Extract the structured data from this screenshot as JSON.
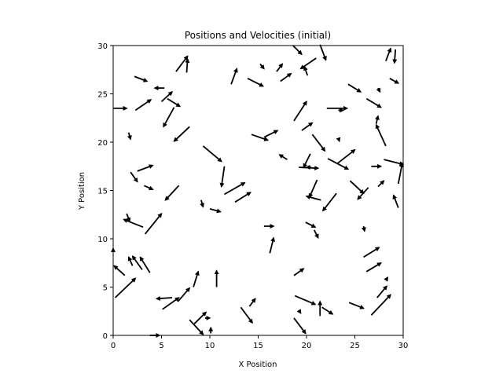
{
  "chart_data": {
    "type": "quiver",
    "title": "Positions and Velocities (initial)",
    "xlabel": "X Position",
    "ylabel": "Y Position",
    "xlim": [
      0,
      30
    ],
    "ylim": [
      0,
      30
    ],
    "xticks": [
      0,
      5,
      10,
      15,
      20,
      25,
      30
    ],
    "yticks": [
      0,
      5,
      10,
      15,
      20,
      25,
      30
    ],
    "grid": false,
    "arrow_color": "#000000",
    "arrows": [
      {
        "x": 0.0,
        "y": 23.5,
        "u": 1.4,
        "v": 0.0
      },
      {
        "x": 2.2,
        "y": 26.8,
        "u": 1.3,
        "v": -0.5
      },
      {
        "x": 2.3,
        "y": 23.3,
        "u": 1.6,
        "v": 1.1
      },
      {
        "x": 5.3,
        "y": 25.6,
        "u": -1.0,
        "v": 0.0
      },
      {
        "x": 5.0,
        "y": 24.2,
        "u": 1.1,
        "v": 1.0
      },
      {
        "x": 5.6,
        "y": 24.5,
        "u": 1.3,
        "v": -0.8
      },
      {
        "x": 6.3,
        "y": 23.6,
        "u": -1.1,
        "v": -2.0
      },
      {
        "x": 6.5,
        "y": 27.3,
        "u": 1.2,
        "v": 1.6
      },
      {
        "x": 7.6,
        "y": 27.2,
        "u": 0.1,
        "v": 1.4
      },
      {
        "x": 7.9,
        "y": 21.6,
        "u": -1.6,
        "v": -1.5
      },
      {
        "x": 1.6,
        "y": 21.0,
        "u": 0.2,
        "v": -0.7
      },
      {
        "x": 2.5,
        "y": 17.0,
        "u": 1.6,
        "v": 0.6
      },
      {
        "x": 1.8,
        "y": 16.9,
        "u": 0.7,
        "v": -1.0
      },
      {
        "x": 3.2,
        "y": 15.5,
        "u": 0.9,
        "v": -0.4
      },
      {
        "x": 6.8,
        "y": 15.5,
        "u": -1.4,
        "v": -1.5
      },
      {
        "x": 9.1,
        "y": 14.0,
        "u": 0.2,
        "v": -0.7
      },
      {
        "x": 10.0,
        "y": 13.1,
        "u": 1.1,
        "v": -0.3
      },
      {
        "x": 11.5,
        "y": 17.5,
        "u": -0.3,
        "v": -2.1
      },
      {
        "x": 9.3,
        "y": 19.6,
        "u": 1.9,
        "v": -1.6
      },
      {
        "x": 12.2,
        "y": 26.0,
        "u": 0.6,
        "v": 1.6
      },
      {
        "x": 13.9,
        "y": 26.6,
        "u": 1.6,
        "v": -0.8
      },
      {
        "x": 15.2,
        "y": 28.1,
        "u": 0.4,
        "v": -0.5
      },
      {
        "x": 16.9,
        "y": 27.3,
        "u": 0.6,
        "v": 0.8
      },
      {
        "x": 17.3,
        "y": 26.3,
        "u": 1.1,
        "v": 0.8
      },
      {
        "x": 18.6,
        "y": 30.0,
        "u": 0.9,
        "v": -0.9
      },
      {
        "x": 21.0,
        "y": 28.7,
        "u": -1.6,
        "v": -1.1
      },
      {
        "x": 20.1,
        "y": 26.9,
        "u": -0.3,
        "v": 0.9
      },
      {
        "x": 21.4,
        "y": 30.1,
        "u": 0.6,
        "v": -1.6
      },
      {
        "x": 24.3,
        "y": 26.0,
        "u": 1.3,
        "v": -0.8
      },
      {
        "x": 27.4,
        "y": 25.6,
        "u": 0.2,
        "v": -0.4
      },
      {
        "x": 28.2,
        "y": 28.4,
        "u": 0.5,
        "v": 1.3
      },
      {
        "x": 29.2,
        "y": 29.6,
        "u": -0.1,
        "v": -1.4
      },
      {
        "x": 28.6,
        "y": 26.6,
        "u": 0.9,
        "v": -0.5
      },
      {
        "x": 26.2,
        "y": 24.5,
        "u": 1.5,
        "v": -0.9
      },
      {
        "x": 22.1,
        "y": 23.5,
        "u": 2.1,
        "v": 0.0
      },
      {
        "x": 23.3,
        "y": 23.3,
        "u": 0.5,
        "v": 0.0
      },
      {
        "x": 18.7,
        "y": 22.2,
        "u": 1.3,
        "v": 2.0
      },
      {
        "x": 19.5,
        "y": 21.2,
        "u": 1.1,
        "v": 0.8
      },
      {
        "x": 18.0,
        "y": 18.2,
        "u": -0.8,
        "v": 0.5
      },
      {
        "x": 14.3,
        "y": 20.8,
        "u": 1.7,
        "v": -0.6
      },
      {
        "x": 15.6,
        "y": 20.5,
        "u": 1.4,
        "v": 0.7
      },
      {
        "x": 20.6,
        "y": 20.8,
        "u": 1.3,
        "v": -1.7
      },
      {
        "x": 23.3,
        "y": 20.4,
        "u": 0.1,
        "v": -0.3
      },
      {
        "x": 27.2,
        "y": 21.9,
        "u": 0.2,
        "v": 0.8
      },
      {
        "x": 28.2,
        "y": 19.6,
        "u": -1.0,
        "v": 2.2
      },
      {
        "x": 23.2,
        "y": 17.8,
        "u": 1.8,
        "v": 1.4
      },
      {
        "x": 22.2,
        "y": 18.3,
        "u": 2.1,
        "v": -1.1
      },
      {
        "x": 26.7,
        "y": 17.5,
        "u": 1.0,
        "v": 0.0
      },
      {
        "x": 28.0,
        "y": 18.2,
        "u": 2.0,
        "v": -0.5
      },
      {
        "x": 29.5,
        "y": 15.7,
        "u": 0.4,
        "v": 2.1
      },
      {
        "x": 20.4,
        "y": 18.8,
        "u": -0.7,
        "v": -1.4
      },
      {
        "x": 19.2,
        "y": 17.4,
        "u": 2.0,
        "v": -0.1
      },
      {
        "x": 20.5,
        "y": 17.4,
        "u": -0.5,
        "v": 0.0
      },
      {
        "x": 21.1,
        "y": 16.1,
        "u": -0.8,
        "v": -1.8
      },
      {
        "x": 21.5,
        "y": 14.0,
        "u": -1.5,
        "v": 0.4
      },
      {
        "x": 23.1,
        "y": 14.7,
        "u": -1.4,
        "v": -1.8
      },
      {
        "x": 24.5,
        "y": 16.0,
        "u": 1.4,
        "v": -1.3
      },
      {
        "x": 26.4,
        "y": 15.3,
        "u": -1.1,
        "v": -1.2
      },
      {
        "x": 27.4,
        "y": 15.4,
        "u": 0.6,
        "v": 0.6
      },
      {
        "x": 29.5,
        "y": 13.2,
        "u": -0.5,
        "v": 1.3
      },
      {
        "x": 11.5,
        "y": 14.6,
        "u": 2.1,
        "v": 1.2
      },
      {
        "x": 12.6,
        "y": 13.8,
        "u": 1.6,
        "v": 1.0
      },
      {
        "x": 1.4,
        "y": 12.6,
        "u": 0.3,
        "v": -0.8
      },
      {
        "x": 3.1,
        "y": 11.2,
        "u": -2.0,
        "v": 0.8
      },
      {
        "x": 3.3,
        "y": 10.5,
        "u": 1.7,
        "v": 2.1
      },
      {
        "x": 0.0,
        "y": 8.7,
        "u": 0.0,
        "v": 0.3
      },
      {
        "x": 2.0,
        "y": 7.2,
        "u": -0.4,
        "v": 0.9
      },
      {
        "x": 3.0,
        "y": 6.8,
        "u": -1.0,
        "v": 1.4
      },
      {
        "x": 3.8,
        "y": 6.5,
        "u": -1.0,
        "v": 1.6
      },
      {
        "x": 1.2,
        "y": 6.2,
        "u": -1.1,
        "v": 1.0
      },
      {
        "x": 0.2,
        "y": 3.9,
        "u": 2.1,
        "v": 2.0
      },
      {
        "x": 16.2,
        "y": 8.5,
        "u": 0.4,
        "v": 1.6
      },
      {
        "x": 15.6,
        "y": 11.3,
        "u": 1.0,
        "v": 0.0
      },
      {
        "x": 19.9,
        "y": 11.7,
        "u": 1.0,
        "v": -0.5
      },
      {
        "x": 20.8,
        "y": 10.9,
        "u": 0.4,
        "v": -0.8
      },
      {
        "x": 25.9,
        "y": 11.3,
        "u": 0.1,
        "v": -0.5
      },
      {
        "x": 25.9,
        "y": 8.1,
        "u": 1.6,
        "v": 1.0
      },
      {
        "x": 26.2,
        "y": 6.6,
        "u": 1.5,
        "v": 0.9
      },
      {
        "x": 27.3,
        "y": 3.9,
        "u": 1.0,
        "v": 1.2
      },
      {
        "x": 28.2,
        "y": 5.7,
        "u": 0.2,
        "v": 0.3
      },
      {
        "x": 26.7,
        "y": 2.1,
        "u": 2.0,
        "v": 2.1
      },
      {
        "x": 24.4,
        "y": 3.4,
        "u": 1.5,
        "v": -0.6
      },
      {
        "x": 18.7,
        "y": 6.2,
        "u": 1.0,
        "v": 0.7
      },
      {
        "x": 18.8,
        "y": 4.1,
        "u": 2.1,
        "v": -0.9
      },
      {
        "x": 21.4,
        "y": 2.0,
        "u": 0.0,
        "v": 1.5
      },
      {
        "x": 21.6,
        "y": 2.9,
        "u": 1.1,
        "v": -0.7
      },
      {
        "x": 18.7,
        "y": 1.8,
        "u": 1.2,
        "v": -1.6
      },
      {
        "x": 19.2,
        "y": 2.6,
        "u": 0.2,
        "v": -0.3
      },
      {
        "x": 13.2,
        "y": 2.9,
        "u": 1.2,
        "v": -1.6
      },
      {
        "x": 14.1,
        "y": 3.0,
        "u": 0.6,
        "v": 0.8
      },
      {
        "x": 10.7,
        "y": 5.0,
        "u": 0.0,
        "v": 1.7
      },
      {
        "x": 8.3,
        "y": 5.0,
        "u": 0.5,
        "v": 1.6
      },
      {
        "x": 6.7,
        "y": 3.5,
        "u": 1.2,
        "v": 1.4
      },
      {
        "x": 6.1,
        "y": 3.9,
        "u": -1.6,
        "v": -0.1
      },
      {
        "x": 5.1,
        "y": 2.7,
        "u": 1.7,
        "v": 1.2
      },
      {
        "x": 8.4,
        "y": 1.2,
        "u": 1.2,
        "v": 1.2
      },
      {
        "x": 9.5,
        "y": 1.8,
        "u": 0.5,
        "v": 0.0
      },
      {
        "x": 7.9,
        "y": 1.6,
        "u": 1.4,
        "v": -1.5
      },
      {
        "x": 3.8,
        "y": 0.0,
        "u": 1.0,
        "v": 0.0
      },
      {
        "x": 10.1,
        "y": 0.2,
        "u": 0.0,
        "v": 0.6
      }
    ]
  }
}
